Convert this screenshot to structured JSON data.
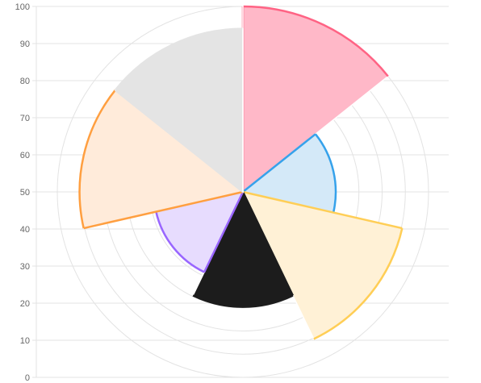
{
  "chart_data": {
    "type": "polar-area",
    "title": "",
    "xlabel": "",
    "ylabel": "",
    "y_ticks": [
      "0",
      "10",
      "20",
      "30",
      "40",
      "50",
      "60",
      "70",
      "80",
      "90",
      "100"
    ],
    "r_range": [
      0,
      100
    ],
    "grid": true,
    "radial_grid_rings": 8,
    "segments": [
      {
        "value": 100,
        "fill": "#FFB8C8",
        "stroke": "#FF6384"
      },
      {
        "value": 50,
        "fill": "#D4E9F8",
        "stroke": "#36A2EB"
      },
      {
        "value": 88,
        "fill": "#FFF1D6",
        "stroke": "#FFCE56"
      },
      {
        "value": 62,
        "fill": "#1C1C1C",
        "stroke": "#1C1C1C"
      },
      {
        "value": 48,
        "fill": "#E7DCFE",
        "stroke": "#9966FF"
      },
      {
        "value": 88,
        "fill": "#FFEBDA",
        "stroke": "#FF9F40"
      },
      {
        "value": 88,
        "fill": "#E4E4E4",
        "stroke": "#E4E4E4"
      }
    ],
    "colors": {
      "grid": "#e3e3e3",
      "axis_text": "#666666",
      "segment_border": "#ffffff"
    }
  }
}
